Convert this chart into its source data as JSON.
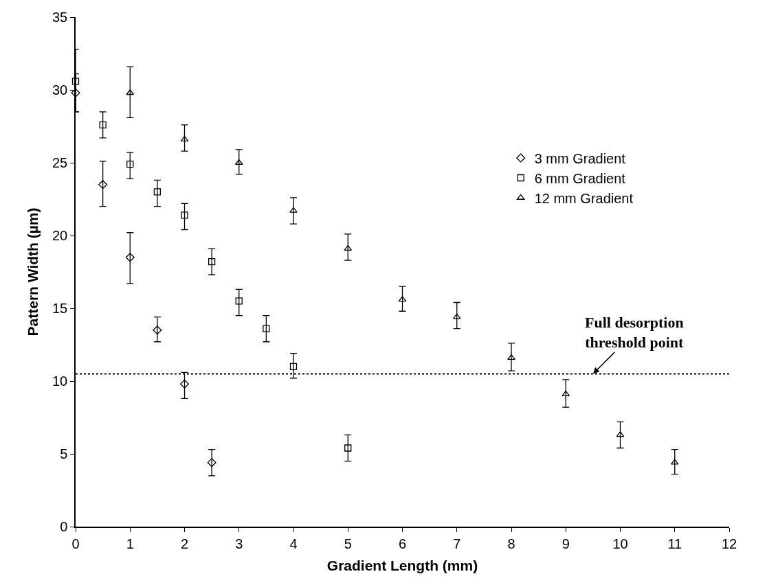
{
  "chart_data": {
    "type": "scatter",
    "xlabel": "Gradient Length (mm)",
    "ylabel": "Pattern Width (µm)",
    "xlim": [
      0,
      12
    ],
    "xticks": [
      0,
      1,
      2,
      3,
      4,
      5,
      6,
      7,
      8,
      9,
      10,
      11,
      12
    ],
    "ylim": [
      0,
      35
    ],
    "yticks": [
      0,
      5,
      10,
      15,
      20,
      25,
      30,
      35
    ],
    "legend": "right",
    "series": [
      {
        "name": "3 mm Gradient",
        "color": "#000000",
        "marker": "diamond",
        "x": [
          0,
          0.5,
          1,
          1.5,
          2,
          2.5
        ],
        "values": [
          29.8,
          23.5,
          18.5,
          13.5,
          9.8,
          4.4
        ],
        "errors": [
          [
            28.5,
            31.1
          ],
          [
            22.0,
            25.1
          ],
          [
            16.7,
            20.2
          ],
          [
            12.7,
            14.4
          ],
          [
            8.8,
            10.6
          ],
          [
            3.5,
            5.3
          ]
        ]
      },
      {
        "name": "6 mm Gradient",
        "color": "#000000",
        "marker": "square",
        "x": [
          0,
          0.5,
          1,
          1.5,
          2,
          2.5,
          3,
          3.5,
          4,
          5
        ],
        "values": [
          30.6,
          27.6,
          24.9,
          23.0,
          21.4,
          18.2,
          15.5,
          13.6,
          11.0,
          5.4
        ],
        "errors": [
          [
            28.5,
            32.8
          ],
          [
            26.7,
            28.5
          ],
          [
            23.9,
            25.7
          ],
          [
            22.0,
            23.8
          ],
          [
            20.4,
            22.2
          ],
          [
            17.3,
            19.1
          ],
          [
            14.5,
            16.3
          ],
          [
            12.7,
            14.5
          ],
          [
            10.2,
            11.9
          ],
          [
            4.5,
            6.3
          ]
        ]
      },
      {
        "name": "12 mm Gradient",
        "color": "#000000",
        "marker": "triangle",
        "x": [
          1,
          2,
          3,
          4,
          5,
          6,
          7,
          8,
          9,
          10,
          11
        ],
        "values": [
          29.8,
          26.6,
          25.0,
          21.7,
          19.1,
          15.6,
          14.4,
          11.6,
          9.1,
          6.3,
          4.4
        ],
        "errors": [
          [
            28.1,
            31.6
          ],
          [
            25.8,
            27.6
          ],
          [
            24.2,
            25.9
          ],
          [
            20.8,
            22.6
          ],
          [
            18.3,
            20.1
          ],
          [
            14.8,
            16.5
          ],
          [
            13.6,
            15.4
          ],
          [
            10.7,
            12.6
          ],
          [
            8.2,
            10.1
          ],
          [
            5.4,
            7.2
          ],
          [
            3.6,
            5.3
          ]
        ]
      }
    ],
    "ref_lines": [
      {
        "axis": "y",
        "value": 10.5,
        "color": "#000000",
        "line_style": "dotted"
      }
    ],
    "annotations": [
      {
        "text": "Full desorption\nthreshold point",
        "x": 9.5,
        "y": 10.5
      }
    ]
  }
}
